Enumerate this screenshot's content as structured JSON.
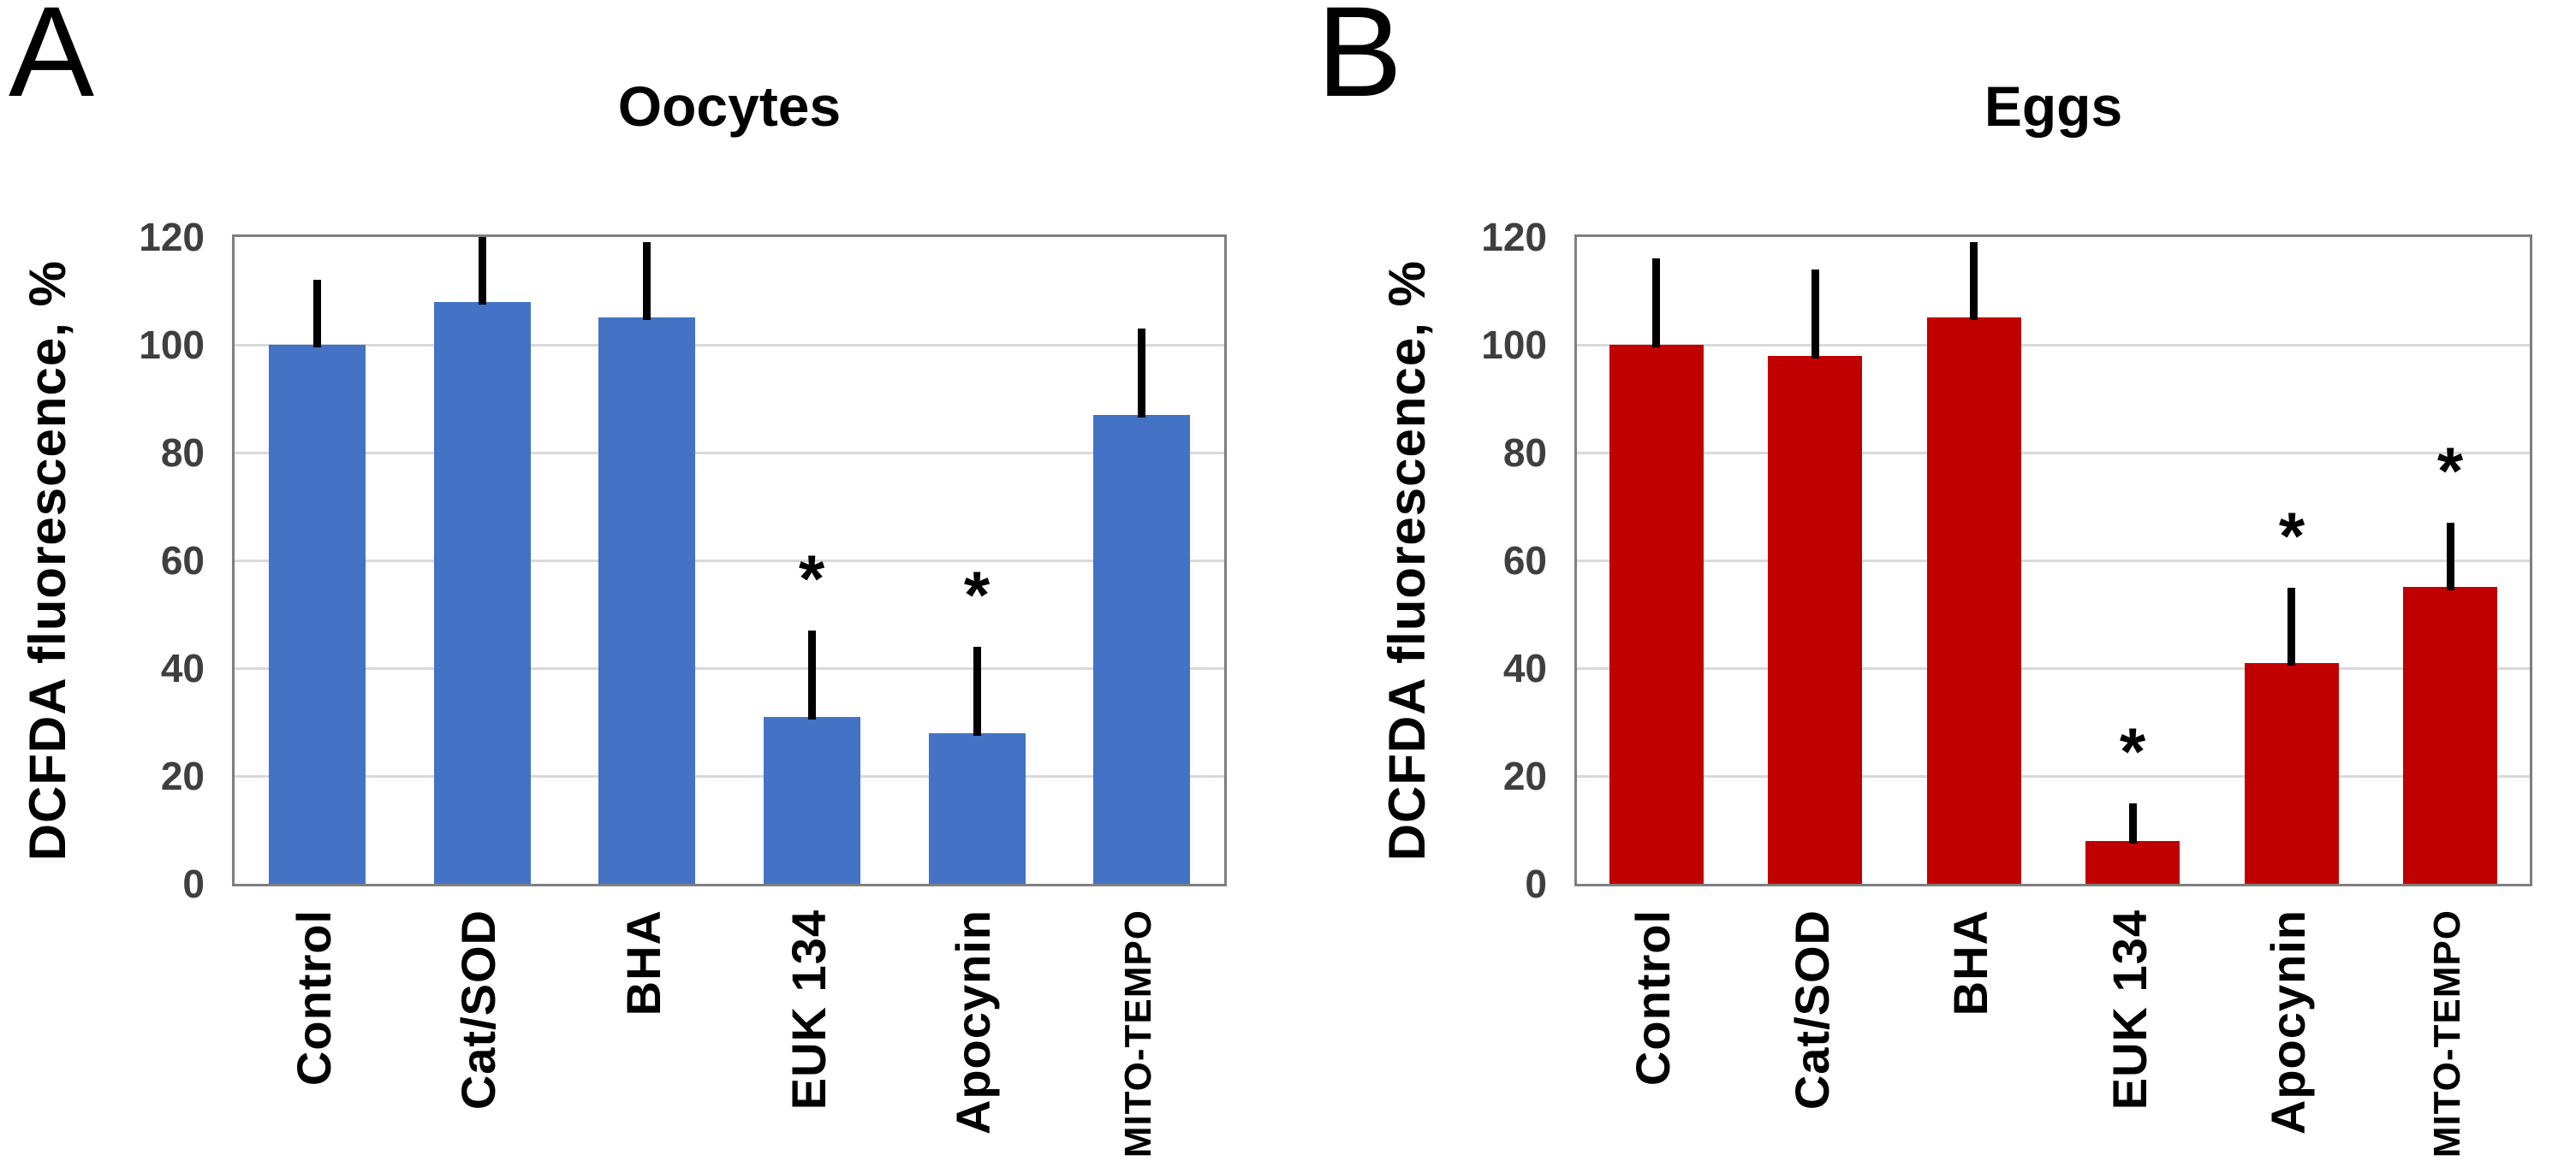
{
  "ylabel_shared": "DCFDA fluorescence, %",
  "sig_marker": "*",
  "colors": {
    "oocytes_bar": "#4472C4",
    "eggs_bar": "#C00000",
    "error_bar": "#000000",
    "plot_border": "#7f7f7f",
    "gridline": "#d9d9d9",
    "tick_text": "#3f3f3f"
  },
  "chart_data": [
    {
      "type": "bar",
      "panel_label": "A",
      "title": "Oocytes",
      "ylabel": "DCFDA fluorescence, %",
      "ylim": [
        0,
        120
      ],
      "yticks": [
        0,
        20,
        40,
        60,
        80,
        100,
        120
      ],
      "grid": true,
      "legend": "none",
      "bar_color": "#4472C4",
      "error_color": "#000000",
      "sig_marker": "*",
      "categories": [
        "Control",
        "Cat/SOD",
        "BHA",
        "EUK 134",
        "Apocynin",
        "MITO-TEMPO"
      ],
      "values": [
        100,
        108,
        105,
        31,
        28,
        87
      ],
      "error_upper": [
        12,
        12,
        14,
        16,
        16,
        16
      ],
      "significant": [
        false,
        false,
        false,
        true,
        true,
        false
      ]
    },
    {
      "type": "bar",
      "panel_label": "B",
      "title": "Eggs",
      "ylabel": "DCFDA fluorescence, %",
      "ylim": [
        0,
        120
      ],
      "yticks": [
        0,
        20,
        40,
        60,
        80,
        100,
        120
      ],
      "grid": true,
      "legend": "none",
      "bar_color": "#C00000",
      "error_color": "#000000",
      "sig_marker": "*",
      "categories": [
        "Control",
        "Cat/SOD",
        "BHA",
        "EUK 134",
        "Apocynin",
        "MITO-TEMPO"
      ],
      "values": [
        100,
        98,
        105,
        8,
        41,
        55
      ],
      "error_upper": [
        16,
        16,
        14,
        7,
        14,
        12
      ],
      "significant": [
        false,
        false,
        false,
        true,
        true,
        true
      ]
    }
  ]
}
